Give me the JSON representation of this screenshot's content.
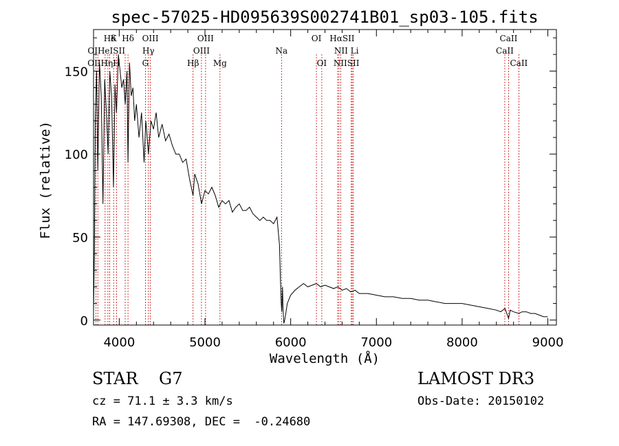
{
  "chart_data": {
    "type": "line",
    "title": "spec-57025-HD095639S002741B01_sp03-105.fits",
    "xlabel": "Wavelength (Å)",
    "ylabel": "Flux (relative)",
    "xlim": [
      3700,
      9100
    ],
    "ylim": [
      -3,
      175
    ],
    "xticks": [
      4000,
      5000,
      6000,
      7000,
      8000,
      9000
    ],
    "yticks": [
      0,
      50,
      100,
      150
    ],
    "line_color": "#000000",
    "marker_color": "#cc0000",
    "spectrum": {
      "x": [
        3700,
        3710,
        3720,
        3735,
        3750,
        3770,
        3790,
        3810,
        3830,
        3850,
        3870,
        3890,
        3910,
        3933,
        3950,
        3968,
        3990,
        4010,
        4030,
        4050,
        4070,
        4090,
        4102,
        4120,
        4140,
        4160,
        4180,
        4200,
        4230,
        4260,
        4290,
        4310,
        4340,
        4370,
        4400,
        4430,
        4460,
        4500,
        4540,
        4580,
        4620,
        4660,
        4700,
        4740,
        4780,
        4820,
        4861,
        4880,
        4920,
        4960,
        5000,
        5040,
        5080,
        5120,
        5160,
        5200,
        5240,
        5280,
        5320,
        5360,
        5400,
        5440,
        5480,
        5520,
        5560,
        5600,
        5640,
        5680,
        5720,
        5760,
        5800,
        5840,
        5870,
        5880,
        5890,
        5896,
        5900,
        5905,
        5910,
        5920,
        5930,
        5940,
        5960,
        6000,
        6050,
        6100,
        6150,
        6200,
        6250,
        6300,
        6350,
        6400,
        6450,
        6500,
        6550,
        6600,
        6650,
        6700,
        6750,
        6800,
        6900,
        7000,
        7100,
        7200,
        7300,
        7400,
        7500,
        7600,
        7700,
        7800,
        7900,
        8000,
        8100,
        8200,
        8300,
        8400,
        8450,
        8500,
        8542,
        8560,
        8600,
        8662,
        8700,
        8750,
        8800,
        8850,
        8900,
        8950,
        9000
      ],
      "y": [
        5,
        40,
        120,
        150,
        90,
        155,
        135,
        70,
        145,
        125,
        100,
        150,
        135,
        80,
        142,
        125,
        160,
        150,
        140,
        145,
        130,
        150,
        95,
        155,
        135,
        140,
        120,
        130,
        110,
        125,
        95,
        120,
        100,
        120,
        115,
        125,
        110,
        118,
        108,
        112,
        105,
        100,
        100,
        95,
        97,
        85,
        75,
        88,
        82,
        70,
        78,
        76,
        80,
        75,
        68,
        72,
        70,
        72,
        65,
        68,
        70,
        66,
        66,
        68,
        64,
        62,
        60,
        62,
        60,
        60,
        58,
        62,
        45,
        25,
        10,
        5,
        12,
        20,
        8,
        -2,
        0,
        3,
        10,
        15,
        18,
        20,
        22,
        20,
        21,
        22,
        20,
        21,
        20,
        19,
        20,
        18,
        19,
        17,
        18,
        16,
        16,
        15,
        14,
        14,
        13,
        13,
        12,
        12,
        11,
        10,
        10,
        10,
        9,
        8,
        7,
        6,
        5,
        7,
        1,
        6,
        5,
        4,
        5,
        5,
        4,
        4,
        3,
        2,
        2
      ]
    },
    "line_labels": [
      {
        "text": "Hδ",
        "x": 3889,
        "row": 0
      },
      {
        "text": "K",
        "x": 3934,
        "row": 0
      },
      {
        "text": "Hδ",
        "x": 4102,
        "row": 0
      },
      {
        "text": "OIII",
        "x": 4363,
        "row": 0
      },
      {
        "text": "OIII",
        "x": 5007,
        "row": 0
      },
      {
        "text": "OI",
        "x": 6300,
        "row": 0
      },
      {
        "text": "HαSII",
        "x": 6600,
        "row": 0
      },
      {
        "text": "CaII",
        "x": 8542,
        "row": 0
      },
      {
        "text": "OIHeISII",
        "x": 3850,
        "row": 1
      },
      {
        "text": "Hγ",
        "x": 4340,
        "row": 1
      },
      {
        "text": "OIII",
        "x": 4959,
        "row": 1
      },
      {
        "text": "Na",
        "x": 5893,
        "row": 1
      },
      {
        "text": "NII Li",
        "x": 6650,
        "row": 1
      },
      {
        "text": "CaII",
        "x": 8498,
        "row": 1
      },
      {
        "text": "OIIHηH",
        "x": 3820,
        "row": 2
      },
      {
        "text": "G",
        "x": 4305,
        "row": 2
      },
      {
        "text": "Hβ",
        "x": 4861,
        "row": 2
      },
      {
        "text": "Mg",
        "x": 5175,
        "row": 2
      },
      {
        "text": "OI",
        "x": 6363,
        "row": 2
      },
      {
        "text": "NIISII",
        "x": 6650,
        "row": 2
      },
      {
        "text": "CaII",
        "x": 8662,
        "row": 2
      }
    ],
    "line_markers": [
      3727,
      3750,
      3835,
      3868,
      3889,
      3934,
      3968,
      4069,
      4102,
      4305,
      4340,
      4363,
      4861,
      4959,
      5007,
      5175,
      5893,
      6300,
      6363,
      6548,
      6563,
      6583,
      6707,
      6717,
      6731,
      8498,
      8542,
      8662
    ]
  },
  "info": {
    "class_label": "STAR    G7",
    "survey": "LAMOST DR3",
    "cz": "cz = 71.1 ± 3.3 km/s",
    "obs_date": "Obs-Date: 20150102",
    "coords": "RA = 147.69308, DEC =  -0.24680"
  }
}
